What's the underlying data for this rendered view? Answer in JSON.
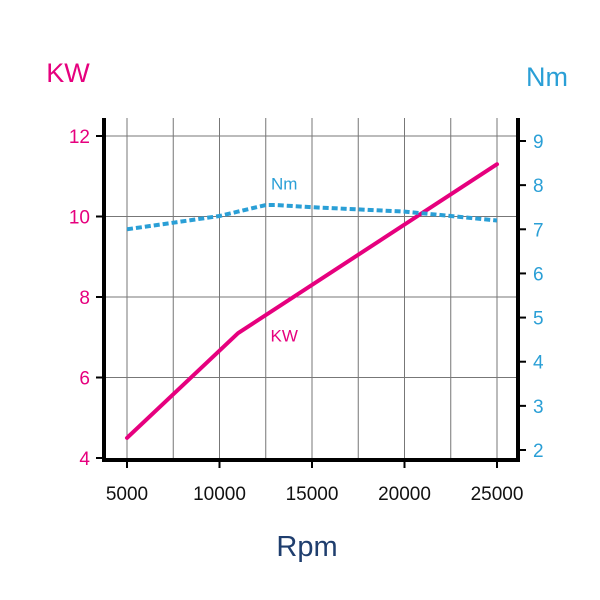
{
  "chart_data": {
    "type": "line",
    "xlabel": "Rpm",
    "ylabel_left": "KW",
    "ylabel_right": "Nm",
    "x_ticks": [
      "5000",
      "10000",
      "15000",
      "20000",
      "25000"
    ],
    "y_left_ticks": [
      "4",
      "6",
      "8",
      "10",
      "12"
    ],
    "y_right_ticks": [
      "2",
      "3",
      "4",
      "5",
      "6",
      "7",
      "8",
      "9"
    ],
    "xlim": [
      5000,
      25000
    ],
    "ylim_left": [
      4,
      12
    ],
    "ylim_right": [
      2,
      9
    ],
    "grid": true,
    "series": [
      {
        "name": "KW",
        "axis": "left",
        "color": "#e6007e",
        "style": "solid",
        "x": [
          5000,
          11000,
          25000
        ],
        "values": [
          4.5,
          7.1,
          11.3
        ]
      },
      {
        "name": "Nm",
        "axis": "right",
        "color": "#2a9fd6",
        "style": "dashed",
        "x": [
          5000,
          7500,
          10000,
          11000,
          12500,
          13000,
          15000,
          17500,
          20000,
          22500,
          25000
        ],
        "values": [
          7.0,
          7.15,
          7.3,
          7.4,
          7.55,
          7.55,
          7.5,
          7.45,
          7.4,
          7.3,
          7.2
        ]
      }
    ]
  }
}
